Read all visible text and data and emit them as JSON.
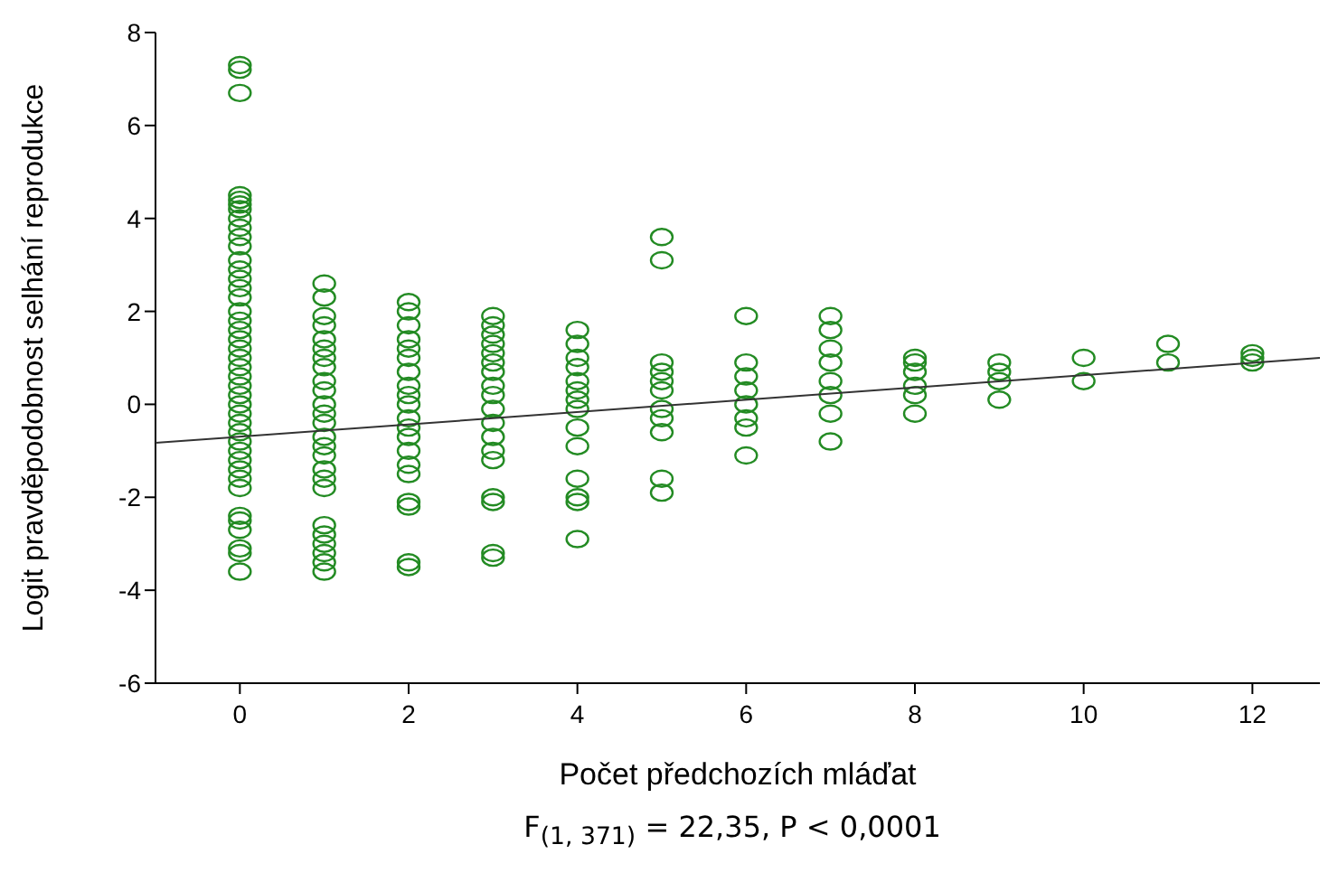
{
  "chart_data": {
    "type": "scatter",
    "xlabel": "Počet předchozích mláďat",
    "ylabel": "Logit pravděpodobnost selhání reprodukce",
    "annotations": [
      "F$_{(1, 371)}$ = 22,35, P < 0,0001"
    ],
    "xlim": [
      -1,
      12.8
    ],
    "xticks": [
      0,
      2,
      4,
      6,
      8,
      10,
      12
    ],
    "ylim": [
      -6,
      8
    ],
    "yticks": [
      -6,
      -4,
      -2,
      0,
      2,
      4,
      6,
      8
    ],
    "series": [
      {
        "marker": "circle",
        "color": "#238b23",
        "x": [
          0,
          0,
          0,
          0,
          0,
          0,
          0,
          0,
          0,
          0,
          0,
          0,
          0,
          0,
          0,
          0,
          0,
          0,
          0,
          0,
          0,
          0,
          0,
          0,
          0,
          0,
          0,
          0,
          0,
          0,
          0,
          0,
          0,
          0,
          0,
          0,
          0,
          0,
          0,
          0,
          0,
          0,
          1,
          1,
          1,
          1,
          1,
          1,
          1,
          1,
          1,
          1,
          1,
          1,
          1,
          1,
          1,
          1,
          1,
          1,
          1,
          1,
          1,
          1,
          1,
          1,
          1,
          2,
          2,
          2,
          2,
          2,
          2,
          2,
          2,
          2,
          2,
          2,
          2,
          2,
          2,
          2,
          2,
          2,
          2,
          2,
          2,
          3,
          3,
          3,
          3,
          3,
          3,
          3,
          3,
          3,
          3,
          3,
          3,
          3,
          3,
          3,
          3,
          3,
          3,
          4,
          4,
          4,
          4,
          4,
          4,
          4,
          4,
          4,
          4,
          4,
          4,
          4,
          4,
          5,
          5,
          5,
          5,
          5,
          5,
          5,
          5,
          5,
          5,
          5,
          6,
          6,
          6,
          6,
          6,
          6,
          6,
          6,
          7,
          7,
          7,
          7,
          7,
          7,
          7,
          7,
          8,
          8,
          8,
          8,
          8,
          8,
          9,
          9,
          9,
          9,
          10,
          10,
          11,
          11,
          12,
          12,
          12
        ],
        "values": [
          7.3,
          7.2,
          6.7,
          4.5,
          4.4,
          4.3,
          4.2,
          4.0,
          3.8,
          3.6,
          3.4,
          3.1,
          2.9,
          2.7,
          2.5,
          2.3,
          2.0,
          1.8,
          1.6,
          1.4,
          1.2,
          1.0,
          0.8,
          0.6,
          0.4,
          0.2,
          0,
          -0.2,
          -0.4,
          -0.6,
          -0.8,
          -1.0,
          -1.2,
          -1.4,
          -1.6,
          -1.8,
          -2.4,
          -2.5,
          -2.7,
          -3.1,
          -3.2,
          -3.6,
          2.6,
          2.3,
          1.9,
          1.7,
          1.4,
          1.2,
          1.0,
          0.8,
          0.5,
          0.3,
          0,
          -0.2,
          -0.4,
          -0.7,
          -0.9,
          -1.1,
          -1.4,
          -1.6,
          -1.8,
          -2.6,
          -2.8,
          -3.0,
          -3.2,
          -3.4,
          -3.6,
          2.2,
          2.0,
          1.7,
          1.4,
          1.2,
          1.0,
          0.7,
          0.4,
          0.2,
          0,
          -0.3,
          -0.5,
          -0.7,
          -1.0,
          -1.3,
          -1.5,
          -2.1,
          -2.2,
          -3.4,
          -3.5,
          1.9,
          1.7,
          1.5,
          1.3,
          1.1,
          0.9,
          0.7,
          0.4,
          0.2,
          -0.1,
          -0.4,
          -0.7,
          -1.0,
          -1.2,
          -2.0,
          -2.1,
          -3.2,
          -3.3,
          1.6,
          1.3,
          1.0,
          0.8,
          0.5,
          0.3,
          0.1,
          -0.1,
          -0.5,
          -0.9,
          -1.6,
          -2.0,
          -2.1,
          -2.9,
          3.6,
          3.1,
          0.9,
          0.7,
          0.5,
          0.3,
          -0.1,
          -0.3,
          -0.6,
          -1.6,
          -1.9,
          1.9,
          0.9,
          0.6,
          0.3,
          0,
          -0.3,
          -0.5,
          -1.1,
          1.9,
          1.6,
          1.2,
          0.9,
          0.5,
          0.2,
          -0.2,
          -0.8,
          1.0,
          0.9,
          0.7,
          0.4,
          0.2,
          -0.2,
          0.9,
          0.7,
          0.5,
          0.1,
          1.0,
          0.5,
          1.3,
          0.9,
          1.1,
          1.0,
          0.9
        ]
      },
      {
        "type": "line",
        "marker": "none",
        "line_style": "solid",
        "color": "#333333",
        "x": [
          -1,
          12.8
        ],
        "values": [
          -0.83,
          1.0
        ]
      }
    ]
  }
}
